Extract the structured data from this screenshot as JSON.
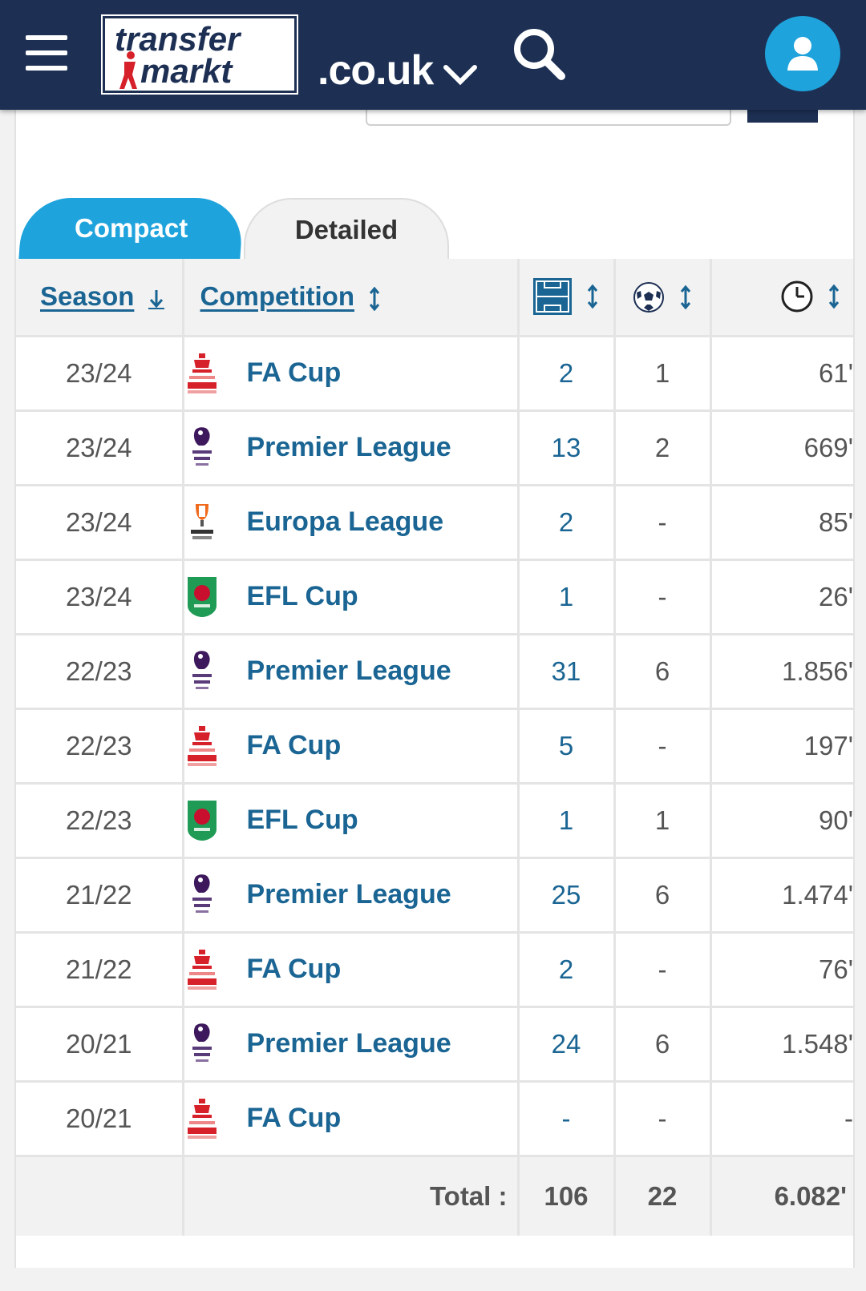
{
  "header": {
    "logo_line1": "transfer",
    "logo_line2": "markt",
    "domain": ".co.uk"
  },
  "tabs": {
    "compact": "Compact",
    "detailed": "Detailed"
  },
  "table": {
    "col_season": "Season",
    "col_competition": "Competition",
    "rows": [
      {
        "season": "23/24",
        "crest": "fa-cup",
        "competition": "FA Cup",
        "apps": "2",
        "goals": "1",
        "minutes": "61'"
      },
      {
        "season": "23/24",
        "crest": "premier-league",
        "competition": "Premier League",
        "apps": "13",
        "goals": "2",
        "minutes": "669'"
      },
      {
        "season": "23/24",
        "crest": "europa-league",
        "competition": "Europa League",
        "apps": "2",
        "goals": "-",
        "minutes": "85'"
      },
      {
        "season": "23/24",
        "crest": "efl-cup",
        "competition": "EFL Cup",
        "apps": "1",
        "goals": "-",
        "minutes": "26'"
      },
      {
        "season": "22/23",
        "crest": "premier-league",
        "competition": "Premier League",
        "apps": "31",
        "goals": "6",
        "minutes": "1.856'"
      },
      {
        "season": "22/23",
        "crest": "fa-cup",
        "competition": "FA Cup",
        "apps": "5",
        "goals": "-",
        "minutes": "197'"
      },
      {
        "season": "22/23",
        "crest": "efl-cup",
        "competition": "EFL Cup",
        "apps": "1",
        "goals": "1",
        "minutes": "90'"
      },
      {
        "season": "21/22",
        "crest": "premier-league",
        "competition": "Premier League",
        "apps": "25",
        "goals": "6",
        "minutes": "1.474'"
      },
      {
        "season": "21/22",
        "crest": "fa-cup",
        "competition": "FA Cup",
        "apps": "2",
        "goals": "-",
        "minutes": "76'"
      },
      {
        "season": "20/21",
        "crest": "premier-league",
        "competition": "Premier League",
        "apps": "24",
        "goals": "6",
        "minutes": "1.548'"
      },
      {
        "season": "20/21",
        "crest": "fa-cup",
        "competition": "FA Cup",
        "apps": "-",
        "goals": "-",
        "minutes": "-"
      }
    ],
    "total_label": "Total :",
    "total_apps": "106",
    "total_goals": "22",
    "total_minutes": "6.082'"
  },
  "icons": {
    "menu": "hamburger-icon",
    "search": "search-icon",
    "user": "user-icon",
    "apps_col": "pitch-icon",
    "goals_col": "football-icon",
    "minutes_col": "clock-icon"
  },
  "colors": {
    "header_bg": "#1d3054",
    "accent": "#1fa3dc",
    "link": "#1a6593"
  }
}
